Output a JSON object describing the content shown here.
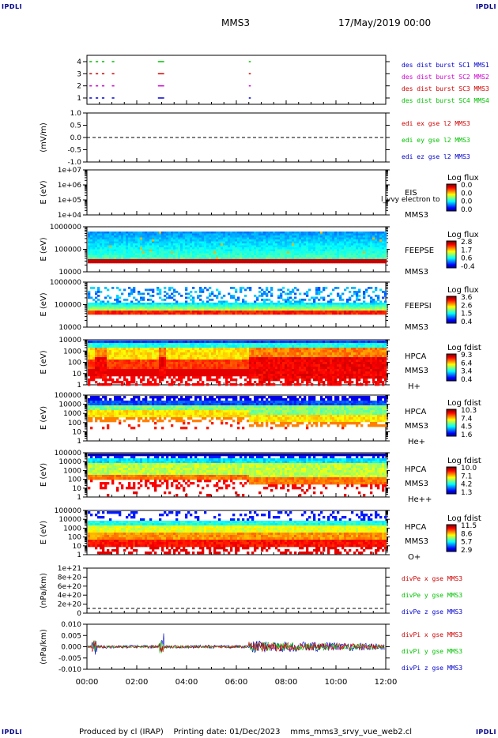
{
  "corners": {
    "top_left": "IPDLI",
    "top_right": "IPDLI",
    "bottom_left": "IPDLI",
    "bottom_right": "IPDLI"
  },
  "header": {
    "spacecraft": "MMS3",
    "date": "17/May/2019 00:00"
  },
  "footer": {
    "produced": "Produced by cl (IRAP)",
    "printing": "Printing date: 01/Dec/2023",
    "file": "mms_mms3_srvy_vue_web2.cl"
  },
  "colors": {
    "red": "#d00000",
    "green": "#00c000",
    "blue": "#0000cc",
    "magenta": "#d000d0"
  },
  "chart_data": [
    {
      "id": "burst",
      "type": "scatter",
      "yticks": [
        "1",
        "2",
        "3",
        "4"
      ],
      "legend": [
        {
          "label": "des dist burst SC1 MMS1",
          "color": "#0000cc"
        },
        {
          "label": "des dist burst SC2 MMS2",
          "color": "#d000d0"
        },
        {
          "label": "des dist burst SC3 MMS3",
          "color": "#d00000"
        },
        {
          "label": "des dist burst SC4 MMS4",
          "color": "#00c000"
        }
      ],
      "intervals_hours": [
        [
          0.1,
          0.2
        ],
        [
          0.35,
          0.45
        ],
        [
          0.6,
          0.7
        ],
        [
          1.0,
          1.1
        ],
        [
          2.85,
          3.1
        ],
        [
          6.5,
          6.58
        ]
      ]
    },
    {
      "id": "edi",
      "type": "line",
      "ylabel": "(mV/m)",
      "yticks": [
        "1.0",
        "0.5",
        "0.0",
        "-0.5",
        "-1.0"
      ],
      "ylim": [
        -1,
        1
      ],
      "legend": [
        {
          "label": "edi ex gse l2 MMS3",
          "color": "#d00000"
        },
        {
          "label": "edi ey gse l2 MMS3",
          "color": "#00c000"
        },
        {
          "label": "edi ez gse l2 MMS3",
          "color": "#0000cc"
        }
      ]
    },
    {
      "id": "eis",
      "type": "heatmap",
      "ylabel": "E (eV)",
      "yticks": [
        "1e+07",
        "1e+06",
        "1e+05",
        "1e+04"
      ],
      "labels": [
        "EIS",
        "l_vvy electron to",
        "MMS3"
      ],
      "cbar_title": "Log flux",
      "cbar_ticks": [
        "0.0",
        "0.0",
        "0.0",
        "0.0"
      ]
    },
    {
      "id": "feepse",
      "type": "heatmap",
      "ylabel": "E (eV)",
      "yticks": [
        "1000000",
        "100000",
        "10000"
      ],
      "labels": [
        "FEEPSE",
        "MMS3"
      ],
      "cbar_title": "Log flux",
      "cbar_ticks": [
        "2.8",
        "1.7",
        "0.6",
        "-0.4"
      ]
    },
    {
      "id": "feepsi",
      "type": "heatmap",
      "ylabel": "E (eV)",
      "yticks": [
        "1000000",
        "100000",
        "10000"
      ],
      "labels": [
        "FEEPSI",
        "MMS3"
      ],
      "cbar_title": "Log flux",
      "cbar_ticks": [
        "3.6",
        "2.6",
        "1.5",
        "0.4"
      ]
    },
    {
      "id": "hpca_h",
      "type": "heatmap",
      "ylabel": "E (eV)",
      "yticks": [
        "10000",
        "1000",
        "100",
        "10",
        "1"
      ],
      "labels": [
        "HPCA",
        "MMS3",
        "H+"
      ],
      "cbar_title": "Log fdist",
      "cbar_ticks": [
        "9.3",
        "6.4",
        "3.4",
        "0.4"
      ]
    },
    {
      "id": "hpca_he",
      "type": "heatmap",
      "ylabel": "E (eV)",
      "yticks": [
        "100000",
        "10000",
        "1000",
        "100",
        "10",
        "1"
      ],
      "labels": [
        "HPCA",
        "MMS3",
        "He+"
      ],
      "cbar_title": "Log fdist",
      "cbar_ticks": [
        "10.3",
        "7.4",
        "4.5",
        "1.6"
      ]
    },
    {
      "id": "hpca_hepp",
      "type": "heatmap",
      "ylabel": "E (eV)",
      "yticks": [
        "100000",
        "10000",
        "1000",
        "100",
        "10",
        "1"
      ],
      "labels": [
        "HPCA",
        "MMS3",
        "He++"
      ],
      "cbar_title": "Log fdist",
      "cbar_ticks": [
        "10.0",
        "7.1",
        "4.2",
        "1.3"
      ]
    },
    {
      "id": "hpca_o",
      "type": "heatmap",
      "ylabel": "E (eV)",
      "yticks": [
        "100000",
        "10000",
        "1000",
        "100",
        "10",
        "1"
      ],
      "labels": [
        "HPCA",
        "MMS3",
        "O+"
      ],
      "cbar_title": "Log fdist",
      "cbar_ticks": [
        "11.5",
        "8.6",
        "5.7",
        "2.9"
      ]
    },
    {
      "id": "divpe",
      "type": "line",
      "ylabel": "(nPa/km)",
      "yticks": [
        "1e+21",
        "8e+20",
        "6e+20",
        "4e+20",
        "2e+20",
        "0"
      ],
      "legend": [
        {
          "label": "divPe x gse MMS3",
          "color": "#d00000"
        },
        {
          "label": "divPe y gse MMS3",
          "color": "#00c000"
        },
        {
          "label": "divPe z gse MMS3",
          "color": "#0000cc"
        }
      ]
    },
    {
      "id": "divpi",
      "type": "line",
      "ylabel": "(nPa/km)",
      "yticks": [
        "0.010",
        "0.005",
        "0.000",
        "-0.005",
        "-0.010"
      ],
      "ylim": [
        -0.011,
        0.011
      ],
      "legend": [
        {
          "label": "divPi x gse MMS3",
          "color": "#d00000"
        },
        {
          "label": "divPi y gse MMS3",
          "color": "#00c000"
        },
        {
          "label": "divPi z gse MMS3",
          "color": "#0000cc"
        }
      ]
    }
  ],
  "xaxis": {
    "ticks": [
      "00:00",
      "02:00",
      "04:00",
      "06:00",
      "08:00",
      "10:00",
      "12:00"
    ],
    "range_hours": [
      0,
      12
    ]
  }
}
